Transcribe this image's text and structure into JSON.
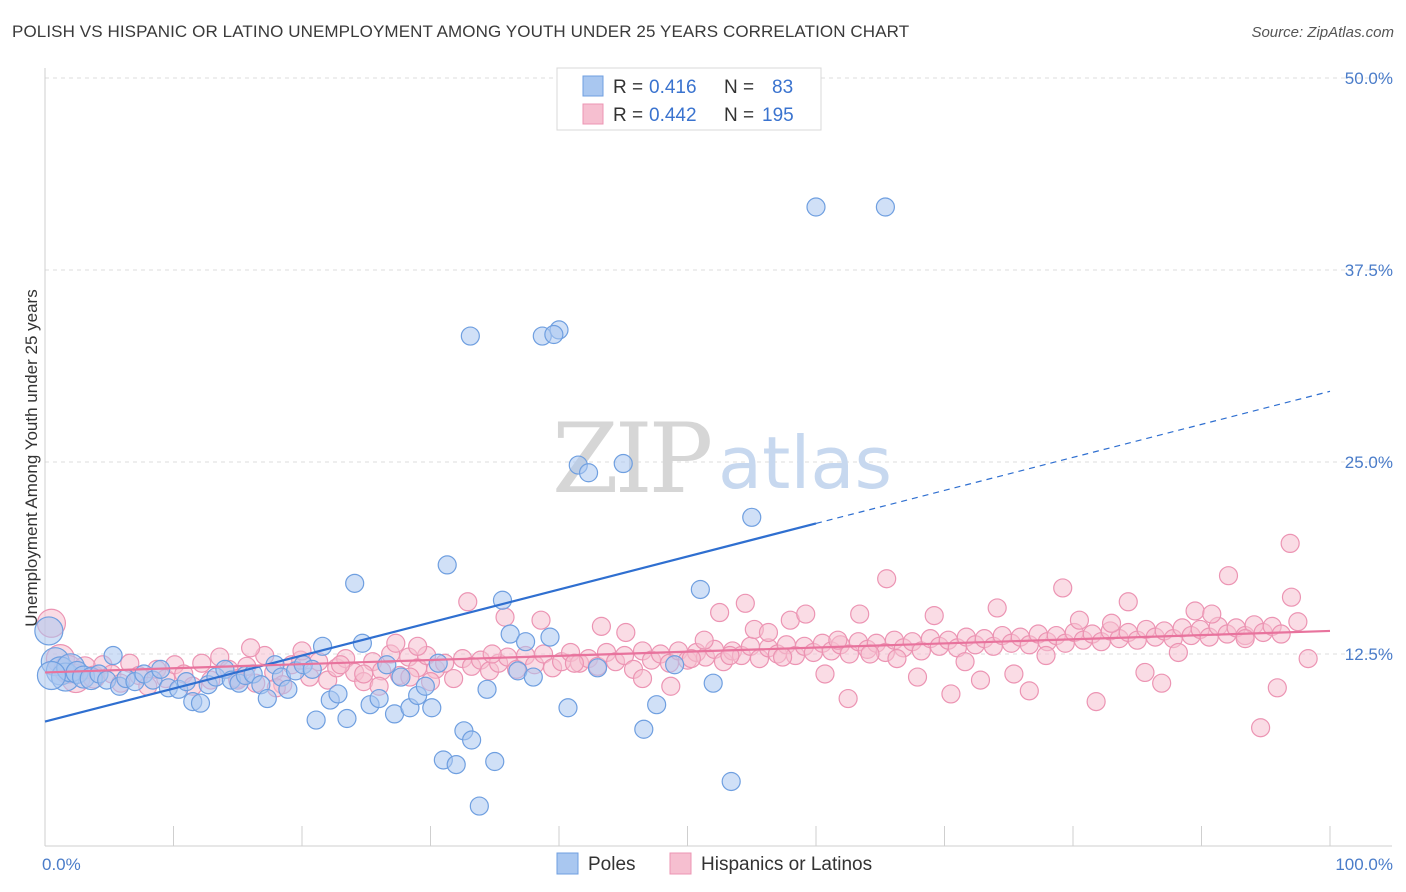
{
  "title": "POLISH VS HISPANIC OR LATINO UNEMPLOYMENT AMONG YOUTH UNDER 25 YEARS CORRELATION CHART",
  "source": "Source: ZipAtlas.com",
  "watermark": {
    "zip": "ZIP",
    "atlas": "atlas"
  },
  "colors": {
    "blue_fill": "#a9c7f0",
    "blue_stroke": "#6f9fe0",
    "blue_line": "#2f6fd0",
    "pink_fill": "#f6bfd0",
    "pink_stroke": "#ec94b3",
    "pink_line": "#e8739d",
    "grid": "#dddddd",
    "tick_text": "#4a7cc9"
  },
  "legend": {
    "rows": [
      {
        "r_label": "R =",
        "r_value": "0.416",
        "n_label": "N =",
        "n_value": "83"
      },
      {
        "r_label": "R =",
        "r_value": "0.442",
        "n_label": "N =",
        "n_value": "195"
      }
    ]
  },
  "bottom_legend": [
    "Poles",
    "Hispanics or Latinos"
  ],
  "chart_data": {
    "type": "scatter",
    "title": "POLISH VS HISPANIC OR LATINO UNEMPLOYMENT AMONG YOUTH UNDER 25 YEARS CORRELATION CHART",
    "xlabel": "",
    "ylabel": "Unemployment Among Youth under 25 years",
    "x_tick_labels": [
      "0.0%",
      "100.0%"
    ],
    "y_tick_labels": [
      "12.5%",
      "25.0%",
      "37.5%",
      "50.0%"
    ],
    "y_tick_values": [
      12.5,
      25.0,
      37.5,
      50.0
    ],
    "xlim": [
      0,
      100
    ],
    "ylim": [
      0,
      50
    ],
    "grid": "horizontal dashed",
    "legend_position": "top-center",
    "series": [
      {
        "name": "Poles",
        "r": 0.416,
        "n": 83,
        "trend": {
          "x0": 0,
          "y0": 8.1,
          "x1": 60,
          "y1": 21.0,
          "dashed_to_x": 100,
          "dashed_to_y": 29.6
        },
        "points": [
          [
            0.3,
            14.0
          ],
          [
            0.8,
            12.0
          ],
          [
            1.2,
            11.4
          ],
          [
            1.6,
            11.0
          ],
          [
            2.0,
            11.6
          ],
          [
            2.5,
            11.3
          ],
          [
            3.0,
            11.0
          ],
          [
            3.6,
            10.9
          ],
          [
            4.2,
            11.2
          ],
          [
            4.8,
            10.8
          ],
          [
            5.3,
            12.4
          ],
          [
            5.8,
            10.4
          ],
          [
            6.3,
            10.9
          ],
          [
            7.0,
            10.7
          ],
          [
            7.7,
            11.2
          ],
          [
            8.4,
            10.8
          ],
          [
            9.0,
            11.5
          ],
          [
            9.6,
            10.3
          ],
          [
            10.4,
            10.2
          ],
          [
            11.0,
            10.7
          ],
          [
            11.5,
            9.4
          ],
          [
            12.1,
            9.3
          ],
          [
            12.7,
            10.5
          ],
          [
            13.3,
            11.0
          ],
          [
            14.0,
            11.5
          ],
          [
            14.5,
            10.8
          ],
          [
            15.1,
            10.6
          ],
          [
            15.6,
            11.1
          ],
          [
            16.2,
            11.2
          ],
          [
            16.8,
            10.5
          ],
          [
            17.3,
            9.6
          ],
          [
            17.9,
            11.8
          ],
          [
            18.4,
            11.0
          ],
          [
            18.9,
            10.2
          ],
          [
            19.5,
            11.4
          ],
          [
            20.1,
            11.8
          ],
          [
            20.8,
            11.5
          ],
          [
            21.1,
            8.2
          ],
          [
            21.6,
            13.0
          ],
          [
            22.2,
            9.5
          ],
          [
            22.8,
            9.9
          ],
          [
            23.5,
            8.3
          ],
          [
            24.1,
            17.1
          ],
          [
            24.7,
            13.2
          ],
          [
            25.3,
            9.2
          ],
          [
            26.0,
            9.6
          ],
          [
            26.6,
            11.8
          ],
          [
            27.2,
            8.6
          ],
          [
            27.7,
            11.0
          ],
          [
            28.4,
            9.0
          ],
          [
            29.0,
            9.8
          ],
          [
            29.6,
            10.4
          ],
          [
            30.1,
            9.0
          ],
          [
            30.6,
            11.9
          ],
          [
            31.0,
            5.6
          ],
          [
            31.3,
            18.3
          ],
          [
            32.0,
            5.3
          ],
          [
            32.6,
            7.5
          ],
          [
            33.2,
            6.9
          ],
          [
            33.8,
            2.6
          ],
          [
            34.4,
            10.2
          ],
          [
            35.0,
            5.5
          ],
          [
            35.6,
            16.0
          ],
          [
            36.2,
            13.8
          ],
          [
            36.8,
            11.4
          ],
          [
            37.4,
            13.3
          ],
          [
            38.0,
            11.0
          ],
          [
            38.7,
            33.2
          ],
          [
            39.3,
            13.6
          ],
          [
            40.0,
            33.6
          ],
          [
            40.7,
            9.0
          ],
          [
            41.5,
            24.8
          ],
          [
            42.3,
            24.3
          ],
          [
            43.0,
            11.6
          ],
          [
            45.0,
            24.9
          ],
          [
            46.6,
            7.6
          ],
          [
            47.6,
            9.2
          ],
          [
            49.0,
            11.8
          ],
          [
            51.0,
            16.7
          ],
          [
            52.0,
            10.6
          ],
          [
            53.4,
            4.2
          ],
          [
            55.0,
            21.4
          ],
          [
            60.0,
            41.6
          ],
          [
            65.4,
            41.6
          ],
          [
            33.1,
            33.2
          ],
          [
            39.6,
            33.3
          ],
          [
            0.5,
            11.1
          ]
        ]
      },
      {
        "name": "Hispanics or Latinos",
        "r": 0.442,
        "n": 195,
        "trend": {
          "x0": 0,
          "y0": 11.3,
          "x1": 100,
          "y1": 14.0
        },
        "points": [
          [
            0.5,
            14.5
          ],
          [
            1.2,
            12.2
          ],
          [
            1.8,
            11.5
          ],
          [
            2.4,
            10.9
          ],
          [
            3.1,
            11.6
          ],
          [
            3.8,
            11.0
          ],
          [
            4.5,
            11.8
          ],
          [
            5.2,
            11.2
          ],
          [
            5.9,
            10.6
          ],
          [
            6.6,
            11.9
          ],
          [
            7.3,
            11.1
          ],
          [
            8.0,
            10.4
          ],
          [
            8.7,
            11.5
          ],
          [
            9.4,
            10.9
          ],
          [
            10.1,
            11.8
          ],
          [
            10.8,
            11.2
          ],
          [
            11.5,
            10.4
          ],
          [
            12.2,
            11.9
          ],
          [
            12.9,
            10.8
          ],
          [
            13.6,
            12.3
          ],
          [
            14.3,
            11.5
          ],
          [
            15.0,
            10.9
          ],
          [
            15.7,
            11.7
          ],
          [
            16.4,
            10.6
          ],
          [
            17.1,
            12.4
          ],
          [
            17.8,
            11.3
          ],
          [
            18.5,
            10.5
          ],
          [
            19.2,
            11.8
          ],
          [
            19.9,
            12.1
          ],
          [
            20.6,
            11.0
          ],
          [
            21.3,
            12.0
          ],
          [
            22.0,
            10.8
          ],
          [
            22.7,
            11.6
          ],
          [
            23.4,
            12.2
          ],
          [
            24.1,
            11.3
          ],
          [
            24.8,
            10.7
          ],
          [
            25.5,
            12.0
          ],
          [
            26.2,
            11.4
          ],
          [
            26.9,
            12.5
          ],
          [
            27.6,
            11.1
          ],
          [
            28.3,
            12.3
          ],
          [
            29.0,
            11.6
          ],
          [
            29.7,
            12.4
          ],
          [
            30.4,
            11.5
          ],
          [
            31.1,
            11.9
          ],
          [
            31.8,
            10.9
          ],
          [
            32.5,
            12.2
          ],
          [
            33.2,
            11.7
          ],
          [
            33.9,
            12.1
          ],
          [
            34.6,
            11.4
          ],
          [
            35.3,
            11.9
          ],
          [
            36.0,
            12.3
          ],
          [
            36.7,
            11.5
          ],
          [
            37.4,
            12.4
          ],
          [
            38.1,
            11.8
          ],
          [
            38.8,
            12.5
          ],
          [
            39.5,
            11.6
          ],
          [
            40.2,
            12.0
          ],
          [
            40.9,
            12.6
          ],
          [
            41.6,
            11.9
          ],
          [
            42.3,
            12.2
          ],
          [
            43.0,
            11.7
          ],
          [
            43.7,
            12.6
          ],
          [
            44.4,
            12.0
          ],
          [
            45.1,
            12.4
          ],
          [
            45.8,
            11.5
          ],
          [
            46.5,
            12.7
          ],
          [
            47.2,
            12.1
          ],
          [
            47.9,
            12.5
          ],
          [
            48.6,
            11.9
          ],
          [
            49.3,
            12.7
          ],
          [
            50.0,
            12.1
          ],
          [
            50.7,
            12.6
          ],
          [
            51.4,
            12.3
          ],
          [
            52.1,
            12.8
          ],
          [
            52.8,
            12.0
          ],
          [
            53.5,
            12.7
          ],
          [
            54.2,
            12.4
          ],
          [
            54.9,
            13.0
          ],
          [
            55.6,
            12.2
          ],
          [
            56.3,
            12.9
          ],
          [
            57.0,
            12.5
          ],
          [
            57.7,
            13.1
          ],
          [
            58.4,
            12.4
          ],
          [
            59.1,
            13.0
          ],
          [
            59.8,
            12.6
          ],
          [
            60.5,
            13.2
          ],
          [
            61.2,
            12.7
          ],
          [
            61.9,
            13.1
          ],
          [
            62.6,
            12.5
          ],
          [
            63.3,
            13.3
          ],
          [
            64.0,
            12.8
          ],
          [
            64.7,
            13.2
          ],
          [
            65.4,
            12.6
          ],
          [
            66.1,
            13.4
          ],
          [
            66.8,
            12.9
          ],
          [
            67.5,
            13.3
          ],
          [
            68.2,
            12.7
          ],
          [
            68.9,
            13.5
          ],
          [
            69.6,
            13.0
          ],
          [
            70.3,
            13.4
          ],
          [
            71.0,
            12.9
          ],
          [
            71.7,
            13.6
          ],
          [
            72.4,
            13.1
          ],
          [
            73.1,
            13.5
          ],
          [
            73.8,
            13.0
          ],
          [
            74.5,
            13.7
          ],
          [
            75.2,
            13.2
          ],
          [
            75.9,
            13.6
          ],
          [
            76.6,
            13.1
          ],
          [
            77.3,
            13.8
          ],
          [
            78.0,
            13.3
          ],
          [
            78.7,
            13.7
          ],
          [
            79.4,
            13.2
          ],
          [
            80.1,
            13.9
          ],
          [
            80.8,
            13.4
          ],
          [
            81.5,
            13.8
          ],
          [
            82.2,
            13.3
          ],
          [
            82.9,
            14.0
          ],
          [
            83.6,
            13.5
          ],
          [
            84.3,
            13.9
          ],
          [
            85.0,
            13.4
          ],
          [
            85.7,
            14.1
          ],
          [
            86.4,
            13.6
          ],
          [
            87.1,
            14.0
          ],
          [
            87.8,
            13.5
          ],
          [
            88.5,
            14.2
          ],
          [
            89.2,
            13.7
          ],
          [
            89.9,
            14.1
          ],
          [
            90.6,
            13.6
          ],
          [
            91.3,
            14.3
          ],
          [
            92.0,
            13.8
          ],
          [
            92.7,
            14.2
          ],
          [
            93.4,
            13.7
          ],
          [
            94.1,
            14.4
          ],
          [
            94.8,
            13.9
          ],
          [
            95.5,
            14.3
          ],
          [
            96.2,
            13.8
          ],
          [
            96.9,
            19.7
          ],
          [
            97.5,
            14.6
          ],
          [
            16.0,
            12.9
          ],
          [
            23.0,
            11.8
          ],
          [
            27.3,
            13.2
          ],
          [
            28.4,
            11.0
          ],
          [
            29.0,
            13.0
          ],
          [
            32.9,
            15.9
          ],
          [
            34.8,
            12.5
          ],
          [
            35.8,
            14.9
          ],
          [
            38.6,
            14.7
          ],
          [
            41.2,
            11.9
          ],
          [
            43.3,
            14.3
          ],
          [
            45.2,
            13.9
          ],
          [
            46.5,
            10.9
          ],
          [
            48.7,
            10.4
          ],
          [
            50.3,
            12.2
          ],
          [
            51.3,
            13.4
          ],
          [
            52.5,
            15.2
          ],
          [
            53.3,
            12.4
          ],
          [
            54.5,
            15.8
          ],
          [
            55.2,
            14.1
          ],
          [
            56.3,
            13.9
          ],
          [
            57.4,
            12.3
          ],
          [
            58.0,
            14.7
          ],
          [
            59.2,
            15.1
          ],
          [
            60.7,
            11.2
          ],
          [
            61.7,
            13.4
          ],
          [
            62.5,
            9.6
          ],
          [
            63.4,
            15.1
          ],
          [
            64.2,
            12.5
          ],
          [
            65.5,
            17.4
          ],
          [
            66.3,
            12.2
          ],
          [
            67.9,
            11.0
          ],
          [
            69.2,
            15.0
          ],
          [
            70.5,
            9.9
          ],
          [
            71.6,
            12.0
          ],
          [
            72.8,
            10.8
          ],
          [
            74.1,
            15.5
          ],
          [
            75.4,
            11.2
          ],
          [
            76.6,
            10.1
          ],
          [
            77.9,
            12.4
          ],
          [
            79.2,
            16.8
          ],
          [
            80.5,
            14.7
          ],
          [
            81.8,
            9.4
          ],
          [
            83.0,
            14.5
          ],
          [
            84.3,
            15.9
          ],
          [
            85.6,
            11.3
          ],
          [
            86.9,
            10.6
          ],
          [
            88.2,
            12.6
          ],
          [
            89.5,
            15.3
          ],
          [
            90.8,
            15.1
          ],
          [
            92.1,
            17.6
          ],
          [
            93.4,
            13.5
          ],
          [
            94.6,
            7.7
          ],
          [
            95.9,
            10.3
          ],
          [
            97.0,
            16.2
          ],
          [
            98.3,
            12.2
          ],
          [
            15.0,
            10.8
          ],
          [
            18.0,
            10.3
          ],
          [
            20.0,
            12.7
          ],
          [
            24.8,
            11.2
          ],
          [
            26.0,
            10.4
          ],
          [
            30.0,
            10.7
          ]
        ]
      }
    ]
  }
}
